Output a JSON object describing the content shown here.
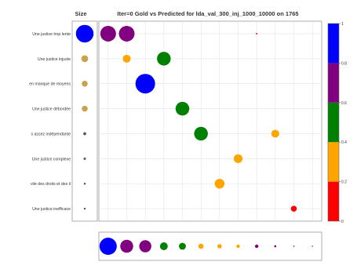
{
  "chart_data": {
    "type": "scatter",
    "title": "Iter=0 Gold vs Predicted for lda_val_300_inj_1000_10000 on 1765",
    "size_header": "Size",
    "rows": [
      "Une justice trop lente",
      "Une justice injuste",
      "en manque de moyens",
      "Une justice débordée",
      "s assez indépendante",
      "Une justice complexe",
      "vile des droits et des li",
      "Une justice inefficace"
    ],
    "row_sizes": [
      0.9,
      0.35,
      0.3,
      0.3,
      0.15,
      0.12,
      0.1,
      0.07
    ],
    "points": [
      {
        "row": 0,
        "col": 0,
        "size": 0.8,
        "value": 0.7
      },
      {
        "row": 0,
        "col": 1,
        "size": 0.8,
        "value": 0.7
      },
      {
        "row": 0,
        "col": 8,
        "size": 0.06,
        "value": 0.1
      },
      {
        "row": 1,
        "col": 1,
        "size": 0.4,
        "value": 0.3
      },
      {
        "row": 1,
        "col": 3,
        "size": 0.7,
        "value": 0.5
      },
      {
        "row": 2,
        "col": 2,
        "size": 1.0,
        "value": 1.0
      },
      {
        "row": 3,
        "col": 4,
        "size": 0.7,
        "value": 0.5
      },
      {
        "row": 4,
        "col": 5,
        "size": 0.7,
        "value": 0.5
      },
      {
        "row": 4,
        "col": 9,
        "size": 0.4,
        "value": 0.3
      },
      {
        "row": 5,
        "col": 7,
        "size": 0.45,
        "value": 0.3
      },
      {
        "row": 6,
        "col": 6,
        "size": 0.5,
        "value": 0.3
      },
      {
        "row": 7,
        "col": 10,
        "size": 0.3,
        "value": 0.1
      }
    ],
    "col_sizes": [
      {
        "size": 1.0,
        "value": 1.0
      },
      {
        "size": 0.75,
        "value": 0.7
      },
      {
        "size": 0.7,
        "value": 0.7
      },
      {
        "size": 0.45,
        "value": 0.5
      },
      {
        "size": 0.4,
        "value": 0.5
      },
      {
        "size": 0.3,
        "value": 0.3
      },
      {
        "size": 0.25,
        "value": 0.3
      },
      {
        "size": 0.2,
        "value": 0.3
      },
      {
        "size": 0.2,
        "value": 0.7
      },
      {
        "size": 0.12,
        "value": 0.7
      },
      {
        "size": 0.08,
        "value": 0.5
      },
      {
        "size": 0.05,
        "value": 0.1
      }
    ],
    "colorbar": {
      "ticks": [
        "0",
        "0.2",
        "0.4",
        "0.6",
        "0.8",
        "1"
      ],
      "bands": [
        {
          "from": 0.0,
          "to": 0.2,
          "color": "#ff0000"
        },
        {
          "from": 0.2,
          "to": 0.4,
          "color": "#ffa500"
        },
        {
          "from": 0.4,
          "to": 0.6,
          "color": "#008000"
        },
        {
          "from": 0.6,
          "to": 0.8,
          "color": "#800080"
        },
        {
          "from": 0.8,
          "to": 1.0,
          "color": "#0000ff"
        }
      ]
    },
    "grid": true
  }
}
